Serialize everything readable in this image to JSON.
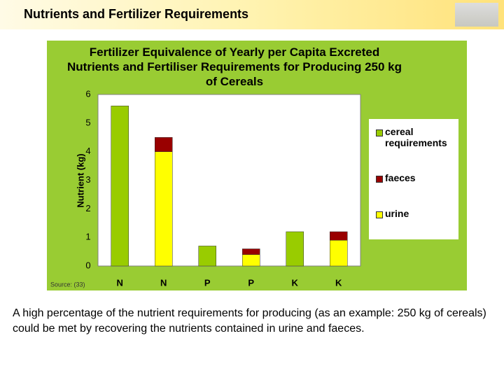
{
  "header": {
    "title": "Nutrients and Fertilizer Requirements"
  },
  "chart_data": {
    "type": "stacked_bar",
    "title": "Fertilizer Equivalence of Yearly per Capita Excreted Nutrients and Fertiliser Requirements for Producing 250 kg of Cereals",
    "ylabel": "Nutrient (kg)",
    "source": "Source: (33)",
    "categories": [
      "N",
      "N",
      "P",
      "P",
      "K",
      "K"
    ],
    "series": [
      {
        "name": "cereal requirements",
        "color": "#99cc00",
        "values": [
          5.6,
          null,
          0.7,
          null,
          1.2,
          null
        ]
      },
      {
        "name": "faeces",
        "color": "#990000",
        "values": [
          null,
          0.5,
          null,
          0.2,
          null,
          0.3
        ]
      },
      {
        "name": "urine",
        "color": "#ffff00",
        "values": [
          null,
          4.0,
          null,
          0.4,
          null,
          0.9
        ]
      }
    ],
    "ylim": [
      0,
      6
    ],
    "yticks": [
      0,
      1,
      2,
      3,
      4,
      5,
      6
    ],
    "grid": false
  },
  "caption": "A high percentage of the nutrient requirements for producing (as an example: 250 kg of cereals) could be met by recovering the nutrients contained in urine and faeces."
}
